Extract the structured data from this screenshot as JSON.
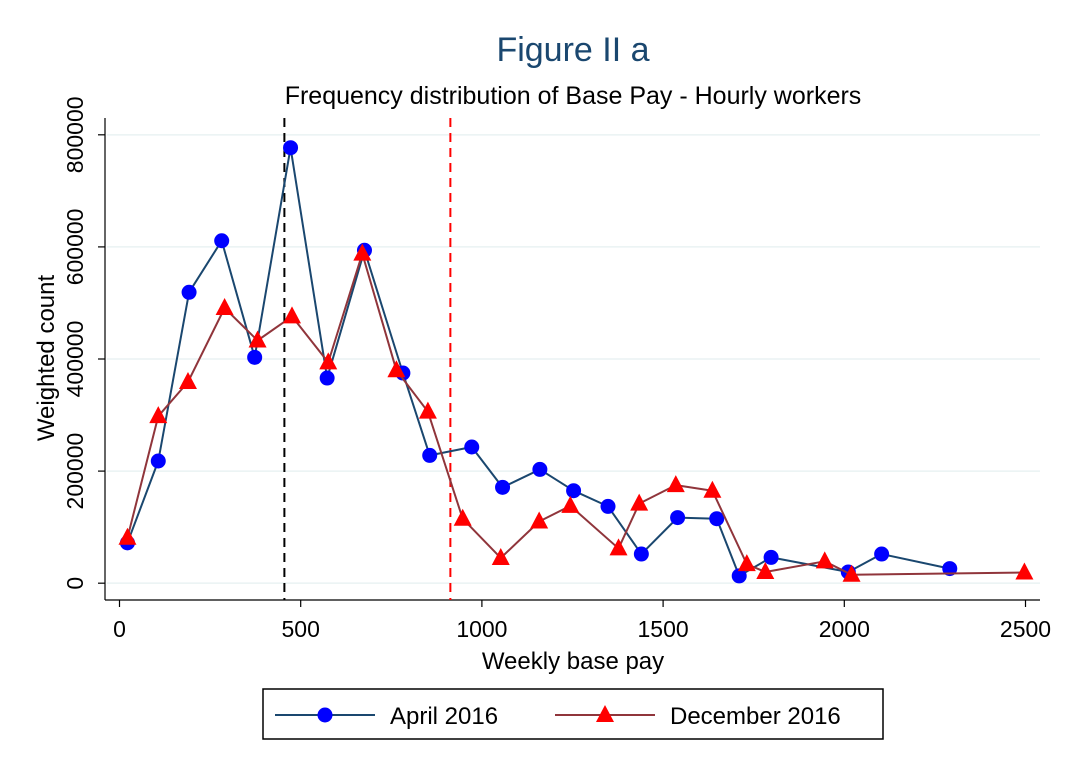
{
  "chart_data": {
    "type": "line",
    "title": "Figure II a",
    "subtitle": "Frequency distribution of Base Pay - Hourly workers",
    "xlabel": "Weekly base pay",
    "ylabel": "Weighted count",
    "xlim": [
      -40,
      2540
    ],
    "ylim": [
      -30000,
      830000
    ],
    "xticks": [
      0,
      500,
      1000,
      1500,
      2000,
      2500
    ],
    "yticks": [
      0,
      200000,
      400000,
      600000,
      800000
    ],
    "grid": true,
    "legend_position": "bottom",
    "reference_lines": [
      {
        "x": 455,
        "color": "#000000",
        "style": "dashed"
      },
      {
        "x": 913,
        "color": "#ff0000",
        "style": "dashed"
      }
    ],
    "series": [
      {
        "name": "April 2016",
        "line_color": "#1a476f",
        "marker_color": "#0000ff",
        "marker": "circle",
        "x": [
          22,
          107,
          192,
          282,
          373,
          472,
          573,
          676,
          782,
          856,
          972,
          1057,
          1160,
          1253,
          1348,
          1440,
          1540,
          1648,
          1710,
          1798,
          2011,
          2103,
          2291
        ],
        "y": [
          72000,
          218000,
          519000,
          611000,
          403000,
          777000,
          366000,
          594000,
          375000,
          228000,
          243000,
          171000,
          203000,
          165000,
          137000,
          52000,
          117000,
          115000,
          13000,
          46000,
          20000,
          52000,
          26000
        ]
      },
      {
        "name": "December 2016",
        "line_color": "#90353b",
        "marker_color": "#ff0000",
        "marker": "triangle",
        "x": [
          22,
          107,
          189,
          290,
          381,
          476,
          576,
          670,
          764,
          851,
          947,
          1052,
          1158,
          1244,
          1377,
          1434,
          1535,
          1636,
          1731,
          1782,
          1946,
          2020,
          2497
        ],
        "y": [
          81000,
          298000,
          359000,
          491000,
          433000,
          476000,
          394000,
          588000,
          380000,
          306000,
          115000,
          45000,
          110000,
          138000,
          62000,
          142000,
          175000,
          165000,
          34000,
          20000,
          39000,
          15000,
          19000
        ]
      }
    ]
  }
}
